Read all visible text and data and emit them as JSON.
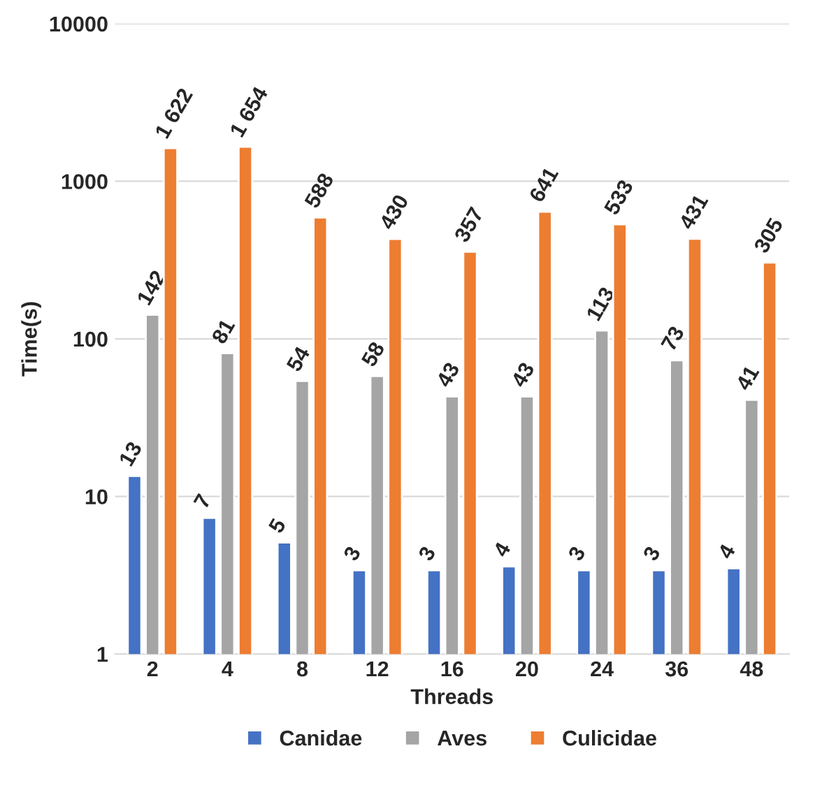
{
  "chart_data": {
    "type": "bar",
    "xlabel": "Threads",
    "ylabel": "Time(s)",
    "categories": [
      "2",
      "4",
      "8",
      "12",
      "16",
      "20",
      "24",
      "36",
      "48"
    ],
    "series": [
      {
        "name": "Canidae",
        "color": "#4472c4",
        "values": [
          13.5,
          7.3,
          5.1,
          3.4,
          3.4,
          3.6,
          3.4,
          3.4,
          3.5
        ],
        "value_labels": [
          "13",
          "7",
          "5",
          "3",
          "3",
          "4",
          "3",
          "3",
          "4"
        ]
      },
      {
        "name": "Aves",
        "color": "#a5a5a5",
        "values": [
          142,
          81,
          54,
          58,
          43,
          43,
          113,
          73,
          41
        ],
        "value_labels": [
          "142",
          "81",
          "54",
          "58",
          "43",
          "43",
          "113",
          "73",
          "41"
        ]
      },
      {
        "name": "Culicidae",
        "color": "#ed7d31",
        "values": [
          1622,
          1654,
          588,
          430,
          357,
          641,
          533,
          431,
          305
        ],
        "value_labels": [
          "1 622",
          "1 654",
          "588",
          "430",
          "357",
          "641",
          "533",
          "431",
          "305"
        ]
      }
    ],
    "log": true,
    "ylim": [
      1,
      10000
    ],
    "yticks": [
      1,
      10,
      100,
      1000,
      10000
    ],
    "grid": "y",
    "legend": "bottom"
  }
}
